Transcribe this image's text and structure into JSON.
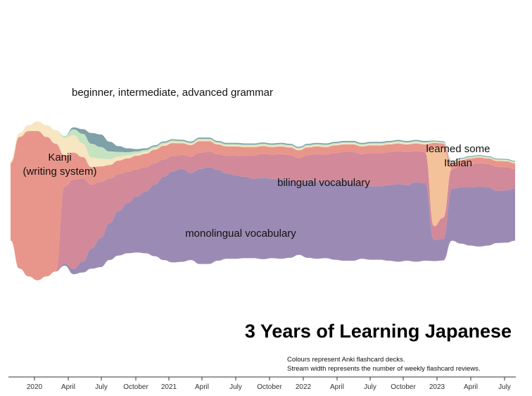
{
  "chart_data": {
    "type": "area",
    "subtype": "streamgraph",
    "title": "3 Years of Learning Japanese",
    "notes": [
      "Colours represent Anki flashcard decks.",
      "Stream width represents the number of weekly flashcard reviews."
    ],
    "x_ticks": [
      "2020",
      "April",
      "July",
      "October",
      "2021",
      "April",
      "July",
      "October",
      "2022",
      "April",
      "July",
      "October",
      "2023",
      "April",
      "July"
    ],
    "x_range": [
      "2019-10",
      "2023-08"
    ],
    "y_axis_shown": false,
    "grid": false,
    "legend": "none",
    "series": [
      {
        "label": "monolingual vocabulary",
        "color": "#9b8bb4",
        "values": [
          0,
          0,
          0,
          0,
          0,
          0,
          5,
          14,
          28,
          52,
          75,
          95,
          115,
          130,
          145,
          160,
          185,
          215,
          235,
          240,
          225,
          245,
          250,
          235,
          220,
          215,
          210,
          205,
          210,
          205,
          205,
          200,
          185,
          200,
          200,
          195,
          200,
          205,
          200,
          190,
          190,
          190,
          195,
          200,
          195,
          205,
          200,
          55,
          55,
          135,
          145,
          150,
          155,
          150,
          135,
          135,
          135
        ]
      },
      {
        "label": "bilingual vocabulary",
        "color": "#d2899a",
        "values": [
          0,
          0,
          0,
          0,
          0,
          0,
          200,
          230,
          215,
          165,
          145,
          115,
          95,
          80,
          70,
          62,
          55,
          45,
          40,
          36,
          42,
          42,
          40,
          40,
          45,
          50,
          55,
          60,
          62,
          62,
          65,
          65,
          65,
          65,
          70,
          72,
          75,
          75,
          80,
          80,
          85,
          85,
          85,
          85,
          85,
          80,
          80,
          35,
          55,
          50,
          55,
          60,
          60,
          60,
          62,
          60,
          50
        ]
      },
      {
        "label": "Kanji (writing system)",
        "color": "#e8968b",
        "values": [
          200,
          340,
          375,
          385,
          360,
          330,
          80,
          70,
          55,
          45,
          40,
          35,
          35,
          35,
          35,
          35,
          35,
          35,
          33,
          30,
          30,
          30,
          27,
          25,
          25,
          25,
          22,
          22,
          20,
          20,
          20,
          20,
          20,
          20,
          20,
          20,
          20,
          20,
          20,
          20,
          20,
          20,
          20,
          20,
          20,
          20,
          20,
          10,
          12,
          15,
          15,
          15,
          15,
          15,
          15,
          15,
          15
        ]
      },
      {
        "label": "beginner, intermediate, advanced grammar",
        "colors": [
          "#f7e6c1",
          "#c6e3c1",
          "#7fa1a9"
        ],
        "stacked_values": [
          [
            5,
            10,
            15,
            25,
            30,
            35,
            45,
            45,
            35,
            25,
            20,
            15,
            10,
            8,
            5,
            5,
            4,
            4,
            3,
            3,
            3,
            3,
            3,
            3,
            3,
            3,
            3,
            3,
            3,
            3,
            3,
            3,
            3,
            3,
            3,
            3,
            3,
            3,
            3,
            3,
            3,
            3,
            3,
            3,
            3,
            3,
            3,
            2,
            2,
            2,
            2,
            2,
            2,
            2,
            2,
            2,
            2
          ],
          [
            0,
            0,
            0,
            0,
            0,
            0,
            5,
            15,
            25,
            35,
            30,
            20,
            12,
            8,
            6,
            5,
            4,
            4,
            4,
            3,
            3,
            3,
            3,
            3,
            3,
            3,
            3,
            3,
            3,
            3,
            3,
            3,
            3,
            3,
            3,
            3,
            3,
            3,
            3,
            3,
            3,
            3,
            3,
            3,
            3,
            3,
            3,
            2,
            2,
            2,
            2,
            2,
            2,
            2,
            2,
            2,
            2
          ],
          [
            0,
            0,
            0,
            0,
            0,
            0,
            0,
            5,
            12,
            28,
            32,
            25,
            15,
            10,
            6,
            4,
            3,
            3,
            3,
            3,
            3,
            3,
            3,
            3,
            3,
            3,
            3,
            3,
            3,
            3,
            3,
            3,
            3,
            3,
            3,
            3,
            3,
            3,
            3,
            3,
            3,
            3,
            3,
            3,
            3,
            3,
            3,
            2,
            2,
            2,
            2,
            2,
            2,
            2,
            2,
            2,
            2
          ]
        ]
      },
      {
        "label": "learned some Italian",
        "color": "#f4c29a",
        "values": [
          0,
          0,
          0,
          0,
          0,
          0,
          0,
          0,
          0,
          0,
          0,
          0,
          0,
          0,
          0,
          0,
          0,
          0,
          0,
          0,
          0,
          0,
          0,
          0,
          0,
          0,
          0,
          0,
          0,
          0,
          0,
          0,
          0,
          0,
          0,
          0,
          0,
          0,
          0,
          0,
          0,
          0,
          0,
          0,
          0,
          0,
          0,
          205,
          180,
          0,
          0,
          0,
          0,
          0,
          0,
          0,
          0
        ]
      }
    ]
  },
  "labels": {
    "grammar": "beginner, intermediate, advanced grammar",
    "kanji_line1": "Kanji",
    "kanji_line2": "(writing system)",
    "bilingual": "bilingual vocabulary",
    "italian_line1": "learned some",
    "italian_line2": "Italian",
    "monolingual": "monolingual vocabulary"
  }
}
